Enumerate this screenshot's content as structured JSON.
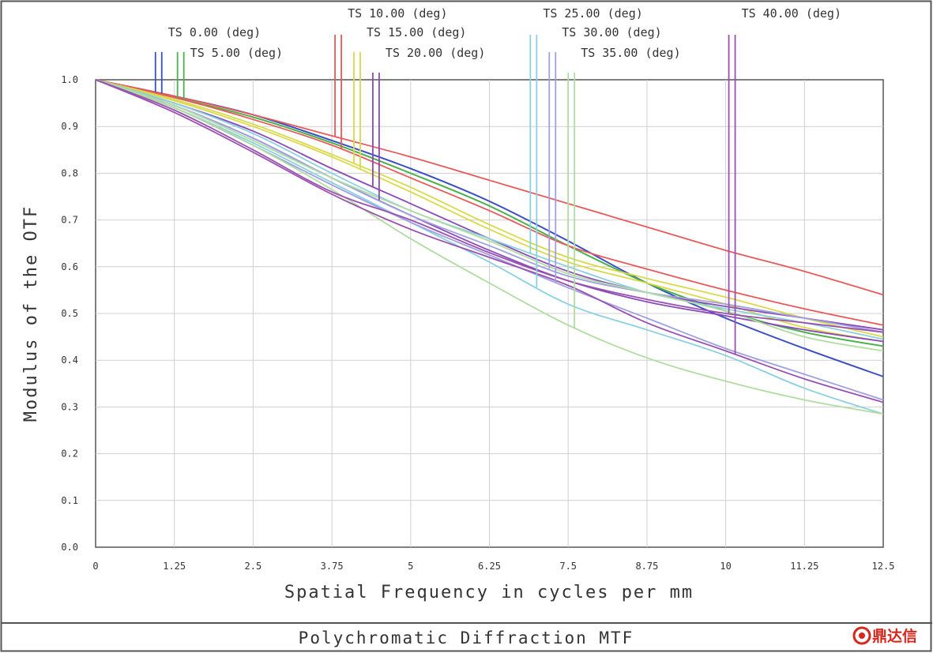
{
  "chart_data": {
    "type": "line",
    "title": "Polychromatic Diffraction MTF",
    "xlabel": "Spatial Frequency in cycles per mm",
    "ylabel": "Modulus of the OTF",
    "xlim": [
      0,
      12.5
    ],
    "ylim": [
      0,
      1.0
    ],
    "grid": true,
    "legend_placement": "top",
    "x_ticks": [
      "0",
      "1.25",
      "2.5",
      "3.75",
      "5",
      "6.25",
      "7.5",
      "8.75",
      "10",
      "11.25",
      "12.5"
    ],
    "y_ticks": [
      "0.0",
      "0.1",
      "0.2",
      "0.3",
      "0.4",
      "0.5",
      "0.6",
      "0.7",
      "0.8",
      "0.9",
      "1.0"
    ],
    "x": [
      0,
      1.25,
      2.5,
      3.75,
      5,
      6.25,
      7.5,
      8.75,
      10,
      11.25,
      12.5
    ],
    "series": [
      {
        "name": "TS 0.00 (deg)",
        "color": "#3a4fc4",
        "marker_x": 1.0,
        "curves": [
          [
            1.0,
            0.965,
            0.925,
            0.87,
            0.81,
            0.74,
            0.655,
            0.565,
            0.49,
            0.425,
            0.365
          ],
          [
            1.0,
            0.965,
            0.925,
            0.87,
            0.81,
            0.74,
            0.655,
            0.565,
            0.49,
            0.425,
            0.365
          ]
        ]
      },
      {
        "name": "TS 5.00 (deg)",
        "color": "#4ab04a",
        "marker_x": 1.35,
        "curves": [
          [
            1.0,
            0.962,
            0.92,
            0.865,
            0.8,
            0.73,
            0.645,
            0.565,
            0.505,
            0.46,
            0.43
          ],
          [
            1.0,
            0.962,
            0.92,
            0.865,
            0.8,
            0.73,
            0.645,
            0.565,
            0.505,
            0.46,
            0.43
          ]
        ]
      },
      {
        "name": "TS 10.00 (deg)",
        "color": "#e85a5a",
        "marker_x": 3.85,
        "curves": [
          [
            1.0,
            0.965,
            0.925,
            0.88,
            0.835,
            0.785,
            0.735,
            0.685,
            0.635,
            0.59,
            0.54
          ],
          [
            1.0,
            0.962,
            0.915,
            0.86,
            0.79,
            0.72,
            0.645,
            0.595,
            0.55,
            0.51,
            0.475
          ]
        ]
      },
      {
        "name": "TS 15.00 (deg)",
        "color": "#d9d94a",
        "marker_x": 4.15,
        "curves": [
          [
            1.0,
            0.958,
            0.905,
            0.84,
            0.77,
            0.69,
            0.62,
            0.575,
            0.535,
            0.49,
            0.45
          ],
          [
            1.0,
            0.955,
            0.9,
            0.835,
            0.76,
            0.68,
            0.61,
            0.565,
            0.52,
            0.47,
            0.44
          ]
        ]
      },
      {
        "name": "TS 20.00 (deg)",
        "color": "#8a4ab8",
        "marker_x": 4.45,
        "curves": [
          [
            1.0,
            0.95,
            0.89,
            0.81,
            0.735,
            0.66,
            0.59,
            0.545,
            0.515,
            0.49,
            0.465
          ],
          [
            1.0,
            0.945,
            0.875,
            0.79,
            0.71,
            0.635,
            0.57,
            0.525,
            0.495,
            0.465,
            0.44
          ]
        ]
      },
      {
        "name": "TS 25.00 (deg)",
        "color": "#8ad0e0",
        "marker_x": 6.95,
        "curves": [
          [
            1.0,
            0.95,
            0.885,
            0.8,
            0.72,
            0.66,
            0.6,
            0.545,
            0.51,
            0.48,
            0.445
          ],
          [
            1.0,
            0.94,
            0.865,
            0.78,
            0.695,
            0.61,
            0.52,
            0.465,
            0.41,
            0.34,
            0.285
          ]
        ]
      },
      {
        "name": "TS 30.00 (deg)",
        "color": "#a0a0e0",
        "marker_x": 7.25,
        "curves": [
          [
            1.0,
            0.945,
            0.875,
            0.79,
            0.71,
            0.645,
            0.58,
            0.545,
            0.52,
            0.49,
            0.46
          ],
          [
            1.0,
            0.94,
            0.86,
            0.775,
            0.695,
            0.625,
            0.555,
            0.49,
            0.425,
            0.37,
            0.315
          ]
        ]
      },
      {
        "name": "TS 35.00 (deg)",
        "color": "#b0dca0",
        "marker_x": 7.55,
        "curves": [
          [
            1.0,
            0.945,
            0.87,
            0.79,
            0.72,
            0.655,
            0.585,
            0.545,
            0.505,
            0.45,
            0.42
          ],
          [
            1.0,
            0.94,
            0.86,
            0.765,
            0.66,
            0.565,
            0.475,
            0.405,
            0.355,
            0.315,
            0.285
          ]
        ]
      },
      {
        "name": "TS 40.00 (deg)",
        "color": "#9a50b0",
        "marker_x": 10.1,
        "curves": [
          [
            1.0,
            0.935,
            0.85,
            0.76,
            0.7,
            0.63,
            0.57,
            0.53,
            0.5,
            0.48,
            0.46
          ],
          [
            1.0,
            0.93,
            0.845,
            0.755,
            0.68,
            0.62,
            0.56,
            0.48,
            0.42,
            0.36,
            0.31
          ]
        ]
      }
    ]
  },
  "watermark": {
    "text": "鼎达信",
    "color": "#d9261c"
  }
}
